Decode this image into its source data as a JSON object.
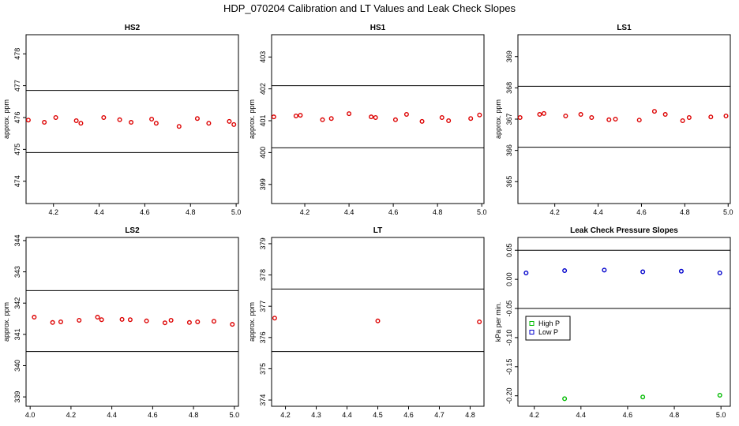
{
  "title": "HDP_070204  Calibration and LT Values and Leak Check Slopes",
  "chart_data": [
    {
      "type": "scatter",
      "title": "HS2",
      "ylabel": "approx. ppm",
      "xlim": [
        4.08,
        5.01
      ],
      "ylim": [
        473.3,
        478.6
      ],
      "xticks": [
        "4.2",
        "4.4",
        "4.6",
        "4.8",
        "5.0"
      ],
      "xtick_values": [
        4.2,
        4.4,
        4.6,
        4.8,
        5.0
      ],
      "yticks": [
        "474",
        "475",
        "476",
        "477",
        "478"
      ],
      "ytick_values": [
        474,
        475,
        476,
        477,
        478
      ],
      "hlines": [
        476.85,
        474.9
      ],
      "series": [
        {
          "name": "values",
          "color": "#dd0000",
          "x": [
            4.09,
            4.16,
            4.21,
            4.3,
            4.32,
            4.42,
            4.49,
            4.54,
            4.63,
            4.65,
            4.75,
            4.83,
            4.88,
            4.97,
            4.99
          ],
          "y": [
            475.92,
            475.85,
            476.0,
            475.9,
            475.82,
            476.0,
            475.93,
            475.85,
            475.95,
            475.82,
            475.72,
            475.97,
            475.82,
            475.88,
            475.78
          ]
        }
      ]
    },
    {
      "type": "scatter",
      "title": "HS1",
      "ylabel": "approx. ppm",
      "xlim": [
        4.05,
        5.01
      ],
      "ylim": [
        398.4,
        403.7
      ],
      "xticks": [
        "4.2",
        "4.4",
        "4.6",
        "4.8",
        "5.0"
      ],
      "xtick_values": [
        4.2,
        4.4,
        4.6,
        4.8,
        5.0
      ],
      "yticks": [
        "399",
        "400",
        "401",
        "402",
        "403"
      ],
      "ytick_values": [
        399,
        400,
        401,
        402,
        403
      ],
      "hlines": [
        402.1,
        400.15
      ],
      "series": [
        {
          "name": "values",
          "color": "#dd0000",
          "x": [
            4.06,
            4.16,
            4.18,
            4.28,
            4.32,
            4.4,
            4.5,
            4.52,
            4.61,
            4.66,
            4.73,
            4.82,
            4.85,
            4.95,
            4.99
          ],
          "y": [
            401.12,
            401.15,
            401.17,
            401.03,
            401.07,
            401.22,
            401.12,
            401.1,
            401.03,
            401.2,
            400.98,
            401.1,
            401.0,
            401.07,
            401.18
          ]
        }
      ]
    },
    {
      "type": "scatter",
      "title": "LS1",
      "ylabel": "approx. ppm",
      "xlim": [
        4.03,
        5.01
      ],
      "ylim": [
        364.3,
        369.7
      ],
      "xticks": [
        "4.2",
        "4.4",
        "4.6",
        "4.8",
        "5.0"
      ],
      "xtick_values": [
        4.2,
        4.4,
        4.6,
        4.8,
        5.0
      ],
      "yticks": [
        "365",
        "366",
        "367",
        "368",
        "369"
      ],
      "ytick_values": [
        365,
        366,
        367,
        368,
        369
      ],
      "hlines": [
        368.05,
        366.1
      ],
      "series": [
        {
          "name": "values",
          "color": "#dd0000",
          "x": [
            4.04,
            4.13,
            4.15,
            4.25,
            4.32,
            4.37,
            4.45,
            4.48,
            4.59,
            4.66,
            4.71,
            4.79,
            4.82,
            4.92,
            4.99
          ],
          "y": [
            367.05,
            367.15,
            367.18,
            367.1,
            367.15,
            367.05,
            366.98,
            367.0,
            366.97,
            367.25,
            367.15,
            366.95,
            367.05,
            367.07,
            367.1
          ]
        }
      ]
    },
    {
      "type": "scatter",
      "title": "LS2",
      "ylabel": "approx. ppm",
      "xlim": [
        3.98,
        5.02
      ],
      "ylim": [
        338.7,
        344.1
      ],
      "xticks": [
        "4.0",
        "4.2",
        "4.4",
        "4.6",
        "4.8",
        "5.0"
      ],
      "xtick_values": [
        4.0,
        4.2,
        4.4,
        4.6,
        4.8,
        5.0
      ],
      "yticks": [
        "339",
        "340",
        "341",
        "342",
        "343",
        "344"
      ],
      "ytick_values": [
        339,
        340,
        341,
        342,
        343,
        344
      ],
      "hlines": [
        342.4,
        340.45
      ],
      "series": [
        {
          "name": "values",
          "color": "#dd0000",
          "x": [
            4.02,
            4.11,
            4.15,
            4.24,
            4.33,
            4.35,
            4.45,
            4.49,
            4.57,
            4.66,
            4.69,
            4.78,
            4.82,
            4.9,
            4.99
          ],
          "y": [
            341.55,
            341.38,
            341.4,
            341.45,
            341.55,
            341.47,
            341.48,
            341.47,
            341.43,
            341.37,
            341.45,
            341.38,
            341.4,
            341.42,
            341.32
          ]
        }
      ]
    },
    {
      "type": "scatter",
      "title": "LT",
      "ylabel": "approx. ppm",
      "xlim": [
        4.155,
        4.845
      ],
      "ylim": [
        373.8,
        379.2
      ],
      "xticks": [
        "4.2",
        "4.3",
        "4.4",
        "4.5",
        "4.6",
        "4.7",
        "4.8"
      ],
      "xtick_values": [
        4.2,
        4.3,
        4.4,
        4.5,
        4.6,
        4.7,
        4.8
      ],
      "yticks": [
        "374",
        "375",
        "376",
        "377",
        "378",
        "379"
      ],
      "ytick_values": [
        374,
        375,
        376,
        377,
        378,
        379
      ],
      "hlines": [
        377.55,
        375.55
      ],
      "series": [
        {
          "name": "values",
          "color": "#dd0000",
          "x": [
            4.165,
            4.5,
            4.83
          ],
          "y": [
            376.62,
            376.53,
            376.5
          ]
        }
      ]
    },
    {
      "type": "scatter",
      "title": "Leak Check Pressure Slopes",
      "ylabel": "kPa per min.",
      "xlim": [
        4.13,
        5.04
      ],
      "ylim": [
        -0.218,
        0.072
      ],
      "xticks": [
        "4.2",
        "4.4",
        "4.6",
        "4.8",
        "5.0"
      ],
      "xtick_values": [
        4.2,
        4.4,
        4.6,
        4.8,
        5.0
      ],
      "yticks": [
        "-0.20",
        "-0.15",
        "-0.10",
        "-0.05",
        "0.00",
        "0.05"
      ],
      "ytick_values": [
        -0.2,
        -0.15,
        -0.1,
        -0.05,
        0.0,
        0.05
      ],
      "hlines": [
        0.05,
        -0.05
      ],
      "legend": {
        "placement": "left",
        "entries": [
          "High P",
          "Low P"
        ],
        "colors": [
          "#00bb00",
          "#0000cc"
        ]
      },
      "series": [
        {
          "name": "High P",
          "color": "#00bb00",
          "x": [
            4.33,
            4.665,
            4.995
          ],
          "y": [
            -0.205,
            -0.202,
            -0.199
          ]
        },
        {
          "name": "Low P",
          "color": "#0000cc",
          "x": [
            4.165,
            4.33,
            4.5,
            4.665,
            4.83,
            4.995
          ],
          "y": [
            0.011,
            0.015,
            0.016,
            0.013,
            0.014,
            0.011
          ]
        }
      ]
    }
  ]
}
